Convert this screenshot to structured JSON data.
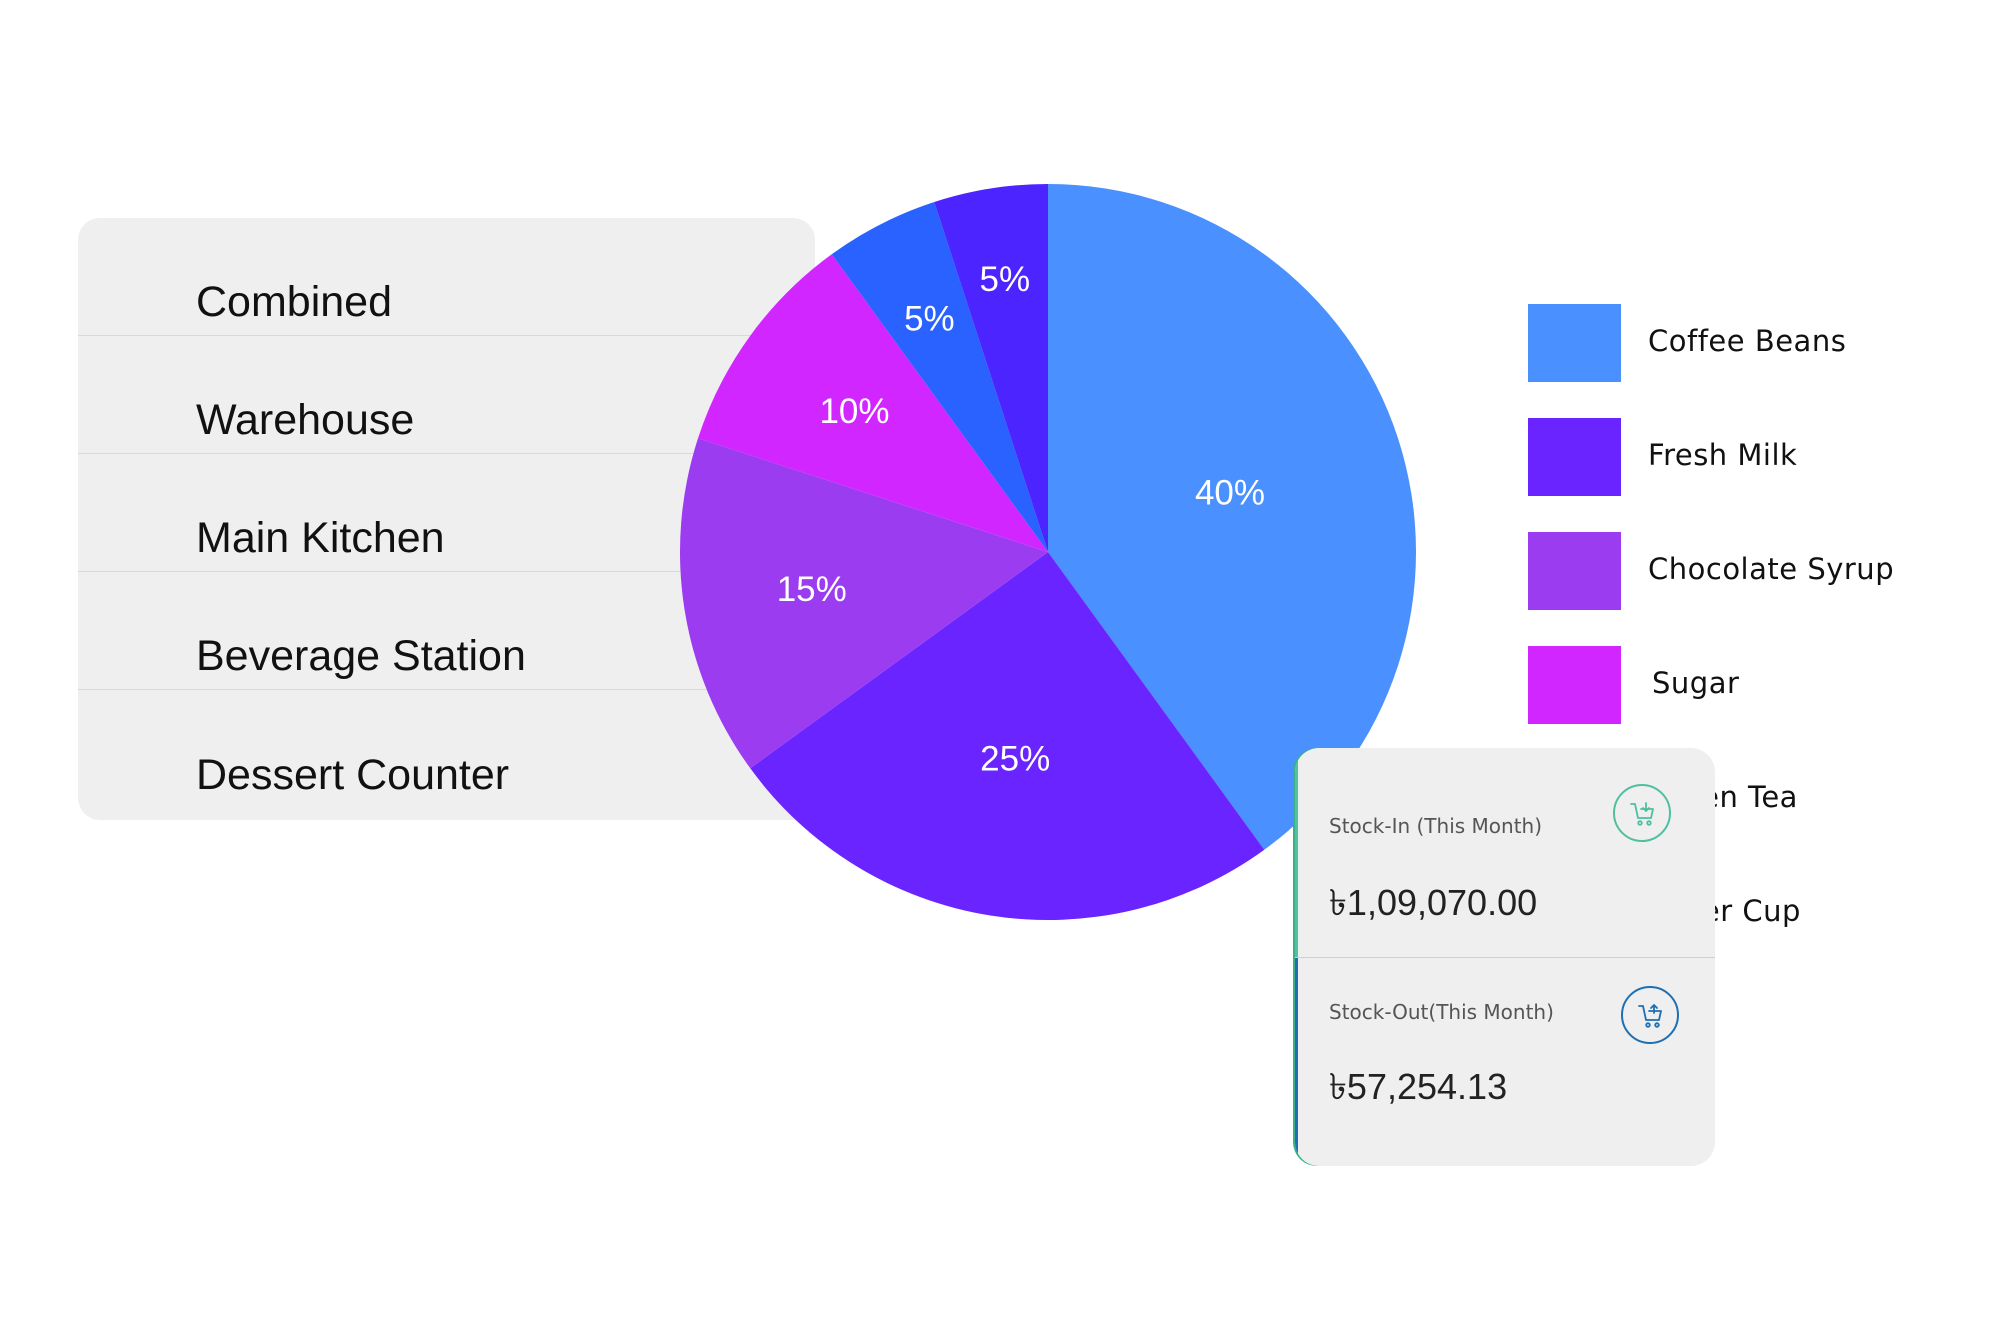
{
  "locations": [
    {
      "label": "Combined"
    },
    {
      "label": "Warehouse"
    },
    {
      "label": "Main Kitchen"
    },
    {
      "label": "Beverage Station"
    },
    {
      "label": "Dessert Counter"
    }
  ],
  "chart_data": {
    "type": "pie",
    "categories": [
      "Coffee Beans",
      "Fresh Milk",
      "Chocolate Syrup",
      "Sugar",
      "Green Tea",
      "Paper Cup"
    ],
    "values": [
      40,
      25,
      15,
      10,
      5,
      5
    ],
    "data_labels": [
      "40%",
      "25%",
      "15%",
      "10%",
      "5%",
      "5%"
    ],
    "colors": [
      "#4a90ff",
      "#6a24ff",
      "#9b3cf0",
      "#d126ff",
      "#2962ff",
      "#4b24ff"
    ],
    "legend_placement": "right"
  },
  "legend": [
    {
      "label": "Coffee Beans",
      "color": "#4a90ff"
    },
    {
      "label": "Fresh Milk",
      "color": "#6a24ff"
    },
    {
      "label": "Chocolate Syrup",
      "color": "#9b3cf0"
    },
    {
      "label": "Sugar",
      "color": "#d126ff"
    },
    {
      "label": "Green Tea",
      "color": "#2962ff"
    },
    {
      "label": "Paper Cup",
      "color": "#4b24ff"
    }
  ],
  "stock": {
    "in": {
      "label": "Stock-In (This Month)",
      "value": "৳1,09,070.00",
      "icon": "cart-icon",
      "icon_color": "#4fbfa0"
    },
    "out": {
      "label": "Stock-Out(This Month)",
      "value": "৳57,254.13",
      "icon": "cart-icon",
      "icon_color": "#1f6fb2"
    }
  }
}
